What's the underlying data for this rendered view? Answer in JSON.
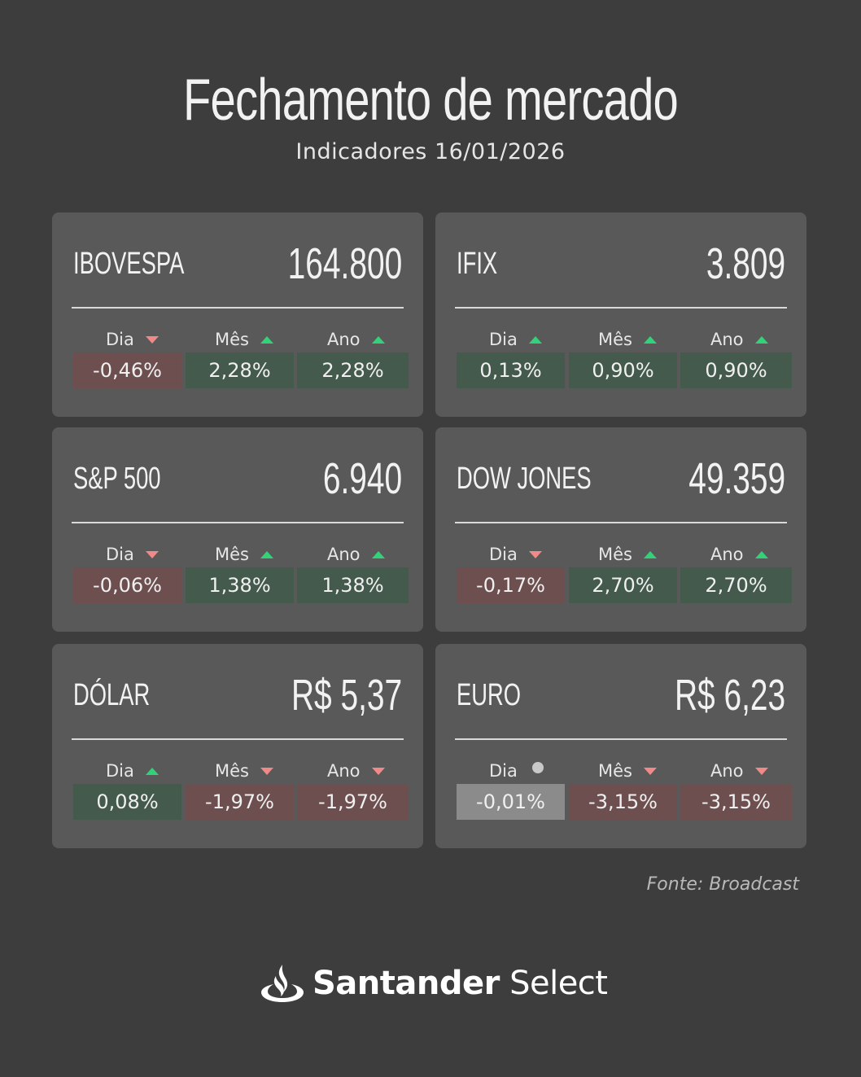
{
  "header": {
    "title": "Fechamento de mercado",
    "subtitle": "Indicadores 16/01/2026"
  },
  "colors": {
    "background": "#3d3d3d",
    "card": "#595959",
    "positive_cell": "#435a4d",
    "negative_cell": "#6e4f4f",
    "neutral_cell": "#8b8b8b",
    "arrow_up": "#33d17a",
    "arrow_down": "#f08a8a"
  },
  "cards": [
    {
      "name": "IBOVESPA",
      "value": "164.800",
      "periods": [
        {
          "label": "Dia",
          "change": "-0,46%",
          "direction": "down"
        },
        {
          "label": "Mês",
          "change": "2,28%",
          "direction": "up"
        },
        {
          "label": "Ano",
          "change": "2,28%",
          "direction": "up"
        }
      ]
    },
    {
      "name": "IFIX",
      "value": "3.809",
      "periods": [
        {
          "label": "Dia",
          "change": "0,13%",
          "direction": "up"
        },
        {
          "label": "Mês",
          "change": "0,90%",
          "direction": "up"
        },
        {
          "label": "Ano",
          "change": "0,90%",
          "direction": "up"
        }
      ]
    },
    {
      "name": "S&P 500",
      "value": "6.940",
      "periods": [
        {
          "label": "Dia",
          "change": "-0,06%",
          "direction": "down"
        },
        {
          "label": "Mês",
          "change": "1,38%",
          "direction": "up"
        },
        {
          "label": "Ano",
          "change": "1,38%",
          "direction": "up"
        }
      ]
    },
    {
      "name": "DOW JONES",
      "value": "49.359",
      "periods": [
        {
          "label": "Dia",
          "change": "-0,17%",
          "direction": "down"
        },
        {
          "label": "Mês",
          "change": "2,70%",
          "direction": "up"
        },
        {
          "label": "Ano",
          "change": "2,70%",
          "direction": "up"
        }
      ]
    },
    {
      "name": "DÓLAR",
      "value": "R$ 5,37",
      "periods": [
        {
          "label": "Dia",
          "change": "0,08%",
          "direction": "up"
        },
        {
          "label": "Mês",
          "change": "-1,97%",
          "direction": "down"
        },
        {
          "label": "Ano",
          "change": "-1,97%",
          "direction": "down"
        }
      ]
    },
    {
      "name": "EURO",
      "value": "R$ 6,23",
      "periods": [
        {
          "label": "Dia",
          "change": "-0,01%",
          "direction": "neutral"
        },
        {
          "label": "Mês",
          "change": "-3,15%",
          "direction": "down"
        },
        {
          "label": "Ano",
          "change": "-3,15%",
          "direction": "down"
        }
      ]
    }
  ],
  "footer": {
    "source": "Fonte: Broadcast",
    "brand_bold": "Santander",
    "brand_light": " Select",
    "brand_icon": "santander-flame-icon"
  }
}
